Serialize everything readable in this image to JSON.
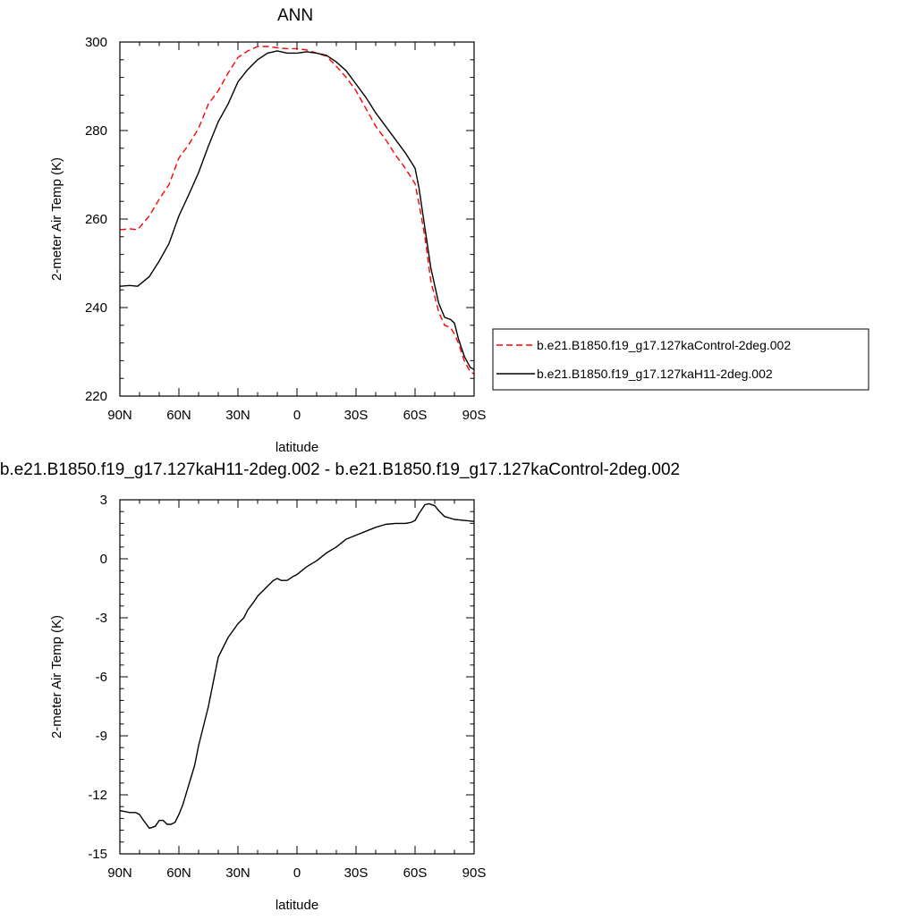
{
  "chart_data": [
    {
      "type": "line",
      "title": "ANN",
      "xlabel": "latitude",
      "ylabel": "2-meter Air Temp (K)",
      "xlim": [
        90,
        -90
      ],
      "ylim": [
        220,
        300
      ],
      "xticks": [
        90,
        60,
        30,
        0,
        -30,
        -60,
        -90
      ],
      "xtick_labels": [
        "90N",
        "60N",
        "30N",
        "0",
        "30S",
        "60S",
        "90S"
      ],
      "yticks": [
        220,
        240,
        260,
        280,
        300
      ],
      "ytick_labels": [
        "220",
        "240",
        "260",
        "280",
        "300"
      ],
      "grid": false,
      "legend": "right",
      "series": [
        {
          "name": "b.e21.B1850.f19_g17.127kaControl-2deg.002",
          "color": "#ff0000",
          "style": "dashed",
          "x": [
            90,
            85,
            81,
            75,
            70,
            65,
            60,
            55,
            50,
            45,
            40,
            35,
            30,
            25,
            20,
            15,
            10,
            5,
            0,
            -5,
            -10,
            -15,
            -20,
            -25,
            -30,
            -35,
            -40,
            -45,
            -50,
            -55,
            -60,
            -62,
            -65,
            -68,
            -70,
            -72,
            -75,
            -78,
            -80,
            -82,
            -85,
            -88,
            -90
          ],
          "values": [
            257.6,
            257.8,
            257.6,
            260.7,
            264.5,
            267.8,
            273.8,
            276.8,
            280.5,
            286.0,
            289.0,
            293.0,
            296.5,
            298.0,
            299.0,
            299.0,
            298.7,
            298.5,
            298.5,
            298.2,
            297.5,
            296.8,
            294.5,
            292.0,
            289.0,
            285.0,
            281.0,
            278.0,
            274.5,
            271.5,
            268.0,
            263.5,
            256.0,
            246.0,
            242.5,
            239.0,
            236.0,
            235.5,
            234.0,
            232.0,
            228.0,
            225.5,
            225.0
          ]
        },
        {
          "name": "b.e21.B1850.f19_g17.127kaH11-2deg.002",
          "color": "#000000",
          "style": "solid",
          "x": [
            90,
            85,
            81,
            75,
            70,
            65,
            60,
            55,
            50,
            45,
            40,
            35,
            30,
            25,
            20,
            15,
            10,
            5,
            0,
            -5,
            -10,
            -15,
            -20,
            -25,
            -30,
            -35,
            -40,
            -45,
            -50,
            -55,
            -60,
            -62,
            -65,
            -68,
            -70,
            -72,
            -75,
            -78,
            -80,
            -82,
            -85,
            -88,
            -90
          ],
          "values": [
            244.8,
            245.0,
            244.8,
            247.0,
            250.5,
            254.5,
            260.7,
            265.5,
            270.5,
            276.5,
            282.0,
            286.0,
            291.0,
            293.8,
            296.0,
            297.5,
            298.0,
            297.5,
            297.5,
            297.8,
            297.5,
            297.0,
            295.5,
            293.5,
            290.5,
            287.5,
            284.0,
            281.0,
            278.0,
            275.0,
            271.5,
            267.0,
            258.0,
            249.0,
            245.0,
            241.0,
            237.8,
            237.3,
            236.5,
            233.0,
            229.0,
            226.5,
            226.0
          ]
        }
      ]
    },
    {
      "type": "line",
      "title": "b.e21.B1850.f19_g17.127kaH11-2deg.002 - b.e21.B1850.f19_g17.127kaControl-2deg.002",
      "xlabel": "latitude",
      "ylabel": "2-meter Air Temp (K)",
      "xlim": [
        90,
        -90
      ],
      "ylim": [
        -15,
        3
      ],
      "xticks": [
        90,
        60,
        30,
        0,
        -30,
        -60,
        -90
      ],
      "xtick_labels": [
        "90N",
        "60N",
        "30N",
        "0",
        "30S",
        "60S",
        "90S"
      ],
      "yticks": [
        3,
        0,
        -3,
        -6,
        -9,
        -12,
        -15
      ],
      "ytick_labels": [
        "3",
        "0",
        "-3",
        "-6",
        "-9",
        "-12",
        "-15"
      ],
      "grid": false,
      "series": [
        {
          "color": "#000000",
          "style": "solid",
          "x": [
            90,
            85,
            82,
            80,
            78,
            75,
            72,
            70,
            68,
            66,
            64,
            62,
            60,
            58,
            55,
            52,
            50,
            45,
            40,
            35,
            30,
            27,
            25,
            22,
            20,
            15,
            12,
            10,
            8,
            5,
            2,
            0,
            -5,
            -10,
            -15,
            -20,
            -25,
            -30,
            -35,
            -40,
            -45,
            -50,
            -55,
            -58,
            -60,
            -62,
            -65,
            -67,
            -70,
            -72,
            -75,
            -80,
            -85,
            -90
          ],
          "values": [
            -12.8,
            -12.9,
            -12.9,
            -13.0,
            -13.3,
            -13.7,
            -13.6,
            -13.3,
            -13.3,
            -13.5,
            -13.5,
            -13.4,
            -13.0,
            -12.5,
            -11.5,
            -10.5,
            -9.5,
            -7.5,
            -5.0,
            -4.0,
            -3.3,
            -3.0,
            -2.6,
            -2.2,
            -1.9,
            -1.4,
            -1.1,
            -1.0,
            -1.1,
            -1.1,
            -0.9,
            -0.8,
            -0.4,
            -0.1,
            0.3,
            0.6,
            1.0,
            1.2,
            1.4,
            1.6,
            1.75,
            1.8,
            1.8,
            1.85,
            1.95,
            2.3,
            2.75,
            2.8,
            2.7,
            2.45,
            2.15,
            2.0,
            1.95,
            1.9
          ]
        }
      ]
    }
  ]
}
